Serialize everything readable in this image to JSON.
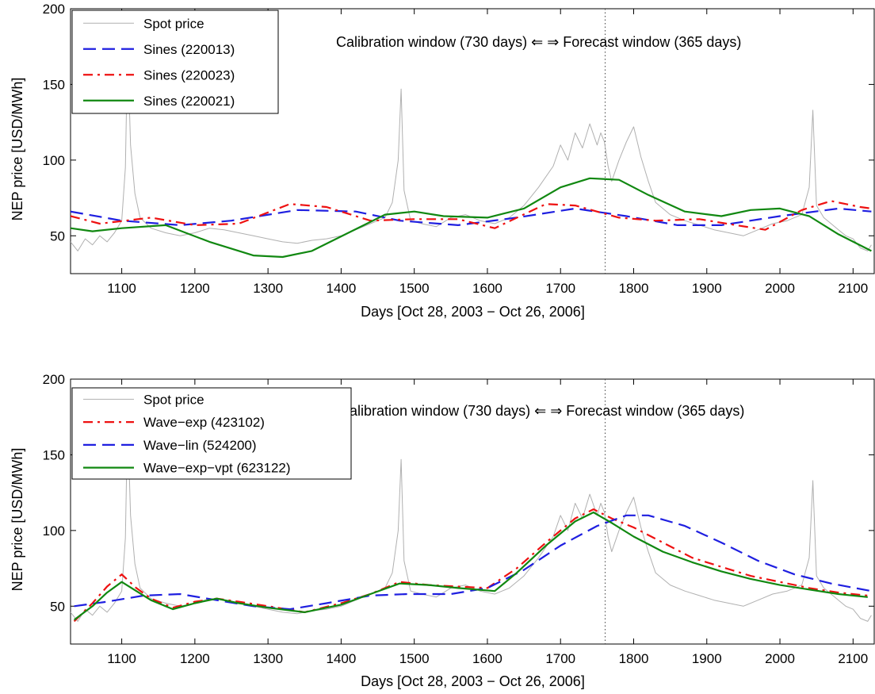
{
  "chart_data": [
    {
      "type": "line",
      "xlabel": "Days [Oct 28, 2003 − Oct 26, 2006]",
      "ylabel": "NEP price [USD/MWh]",
      "xlim": [
        1030,
        2130
      ],
      "ylim": [
        25,
        200
      ],
      "xticks": [
        1100,
        1200,
        1300,
        1400,
        1500,
        1600,
        1700,
        1800,
        1900,
        2000,
        2100
      ],
      "yticks": [
        50,
        100,
        150,
        200
      ],
      "grid": false,
      "legend_position": "top-left",
      "annotation": "Calibration window (730 days) ⇐ ⇒ Forecast window (365 days)",
      "divider_x": 1761,
      "series": [
        {
          "name": "Spot price",
          "color": "#b0b0b0",
          "style": "solid",
          "x": [
            1030,
            1040,
            1050,
            1060,
            1070,
            1080,
            1090,
            1100,
            1105,
            1108,
            1112,
            1118,
            1125,
            1140,
            1160,
            1180,
            1200,
            1220,
            1240,
            1260,
            1280,
            1300,
            1320,
            1340,
            1360,
            1380,
            1400,
            1420,
            1440,
            1460,
            1470,
            1478,
            1482,
            1486,
            1495,
            1510,
            1530,
            1550,
            1570,
            1590,
            1610,
            1630,
            1650,
            1670,
            1690,
            1700,
            1710,
            1720,
            1730,
            1740,
            1750,
            1755,
            1760,
            1765,
            1770,
            1780,
            1790,
            1800,
            1810,
            1820,
            1830,
            1850,
            1870,
            1890,
            1910,
            1930,
            1950,
            1970,
            1990,
            2010,
            2030,
            2040,
            2045,
            2050,
            2060,
            2070,
            2080,
            2090,
            2100,
            2110,
            2120,
            2125
          ],
          "values": [
            46,
            40,
            48,
            44,
            50,
            46,
            52,
            60,
            95,
            175,
            110,
            78,
            62,
            55,
            52,
            50,
            52,
            55,
            54,
            52,
            50,
            48,
            46,
            45,
            47,
            48,
            50,
            54,
            58,
            62,
            72,
            100,
            147,
            80,
            60,
            58,
            56,
            62,
            64,
            60,
            58,
            62,
            70,
            82,
            96,
            110,
            100,
            118,
            108,
            124,
            110,
            118,
            112,
            96,
            86,
            100,
            112,
            122,
            102,
            86,
            72,
            64,
            60,
            57,
            54,
            52,
            50,
            54,
            58,
            60,
            64,
            82,
            133,
            70,
            62,
            58,
            54,
            50,
            48,
            42,
            40,
            44
          ]
        },
        {
          "name": "Sines (220013)",
          "color": "#1f1fe0",
          "style": "dashed",
          "x": [
            1030,
            1100,
            1180,
            1250,
            1340,
            1420,
            1480,
            1560,
            1640,
            1720,
            1790,
            1860,
            1920,
            2000,
            2080,
            2125
          ],
          "values": [
            66,
            60,
            57,
            60,
            67,
            66,
            60,
            57,
            62,
            68,
            63,
            57,
            57,
            63,
            68,
            66
          ]
        },
        {
          "name": "Sines (220023)",
          "color": "#ee1111",
          "style": "dashdot",
          "x": [
            1030,
            1070,
            1140,
            1200,
            1260,
            1330,
            1380,
            1440,
            1500,
            1560,
            1610,
            1680,
            1720,
            1780,
            1830,
            1890,
            1940,
            1980,
            2030,
            2070,
            2110,
            2125
          ],
          "values": [
            63,
            58,
            62,
            57,
            58,
            71,
            69,
            60,
            61,
            61,
            55,
            71,
            70,
            62,
            60,
            61,
            57,
            54,
            67,
            73,
            69,
            68
          ]
        },
        {
          "name": "Sines (220021)",
          "color": "#118811",
          "style": "solid",
          "x": [
            1030,
            1060,
            1100,
            1160,
            1220,
            1280,
            1320,
            1360,
            1410,
            1460,
            1500,
            1540,
            1600,
            1650,
            1700,
            1740,
            1780,
            1820,
            1870,
            1920,
            1960,
            2000,
            2040,
            2080,
            2125
          ],
          "values": [
            55,
            53,
            55,
            57,
            46,
            37,
            36,
            40,
            52,
            64,
            66,
            63,
            62,
            68,
            82,
            88,
            87,
            77,
            66,
            63,
            67,
            68,
            63,
            51,
            40
          ]
        }
      ]
    },
    {
      "type": "line",
      "xlabel": "Days [Oct 28, 2003 − Oct 26, 2006]",
      "ylabel": "NEP price [USD/MWh]",
      "xlim": [
        1030,
        2130
      ],
      "ylim": [
        25,
        200
      ],
      "xticks": [
        1100,
        1200,
        1300,
        1400,
        1500,
        1600,
        1700,
        1800,
        1900,
        2000,
        2100
      ],
      "yticks": [
        50,
        100,
        150,
        200
      ],
      "grid": false,
      "legend_position": "top-left",
      "annotation": "Calibration window (730 days) ⇐ ⇒ Forecast window (365 days)",
      "divider_x": 1761,
      "series": [
        {
          "name": "Spot price",
          "color": "#b0b0b0",
          "style": "solid",
          "x": [
            1030,
            1040,
            1050,
            1060,
            1070,
            1080,
            1090,
            1100,
            1105,
            1108,
            1112,
            1118,
            1125,
            1140,
            1160,
            1180,
            1200,
            1220,
            1240,
            1260,
            1280,
            1300,
            1320,
            1340,
            1360,
            1380,
            1400,
            1420,
            1440,
            1460,
            1470,
            1478,
            1482,
            1486,
            1495,
            1510,
            1530,
            1550,
            1570,
            1590,
            1610,
            1630,
            1650,
            1670,
            1690,
            1700,
            1710,
            1720,
            1730,
            1740,
            1750,
            1755,
            1760,
            1765,
            1770,
            1780,
            1790,
            1800,
            1810,
            1820,
            1830,
            1850,
            1870,
            1890,
            1910,
            1930,
            1950,
            1970,
            1990,
            2010,
            2030,
            2040,
            2045,
            2050,
            2060,
            2070,
            2080,
            2090,
            2100,
            2110,
            2120,
            2125
          ],
          "values": [
            46,
            40,
            48,
            44,
            50,
            46,
            52,
            60,
            95,
            175,
            110,
            78,
            62,
            55,
            52,
            50,
            52,
            55,
            54,
            52,
            50,
            48,
            46,
            45,
            47,
            48,
            50,
            54,
            58,
            62,
            72,
            100,
            147,
            80,
            60,
            58,
            56,
            62,
            64,
            60,
            58,
            62,
            70,
            82,
            96,
            110,
            100,
            118,
            108,
            124,
            110,
            118,
            112,
            96,
            86,
            100,
            112,
            122,
            102,
            86,
            72,
            64,
            60,
            57,
            54,
            52,
            50,
            54,
            58,
            60,
            64,
            82,
            133,
            70,
            62,
            58,
            54,
            50,
            48,
            42,
            40,
            44
          ]
        },
        {
          "name": "Wave−exp (423102)",
          "color": "#ee1111",
          "style": "dashdot",
          "x": [
            1035,
            1060,
            1080,
            1100,
            1120,
            1140,
            1170,
            1200,
            1230,
            1260,
            1300,
            1350,
            1400,
            1440,
            1480,
            1520,
            1560,
            1600,
            1640,
            1680,
            1720,
            1745,
            1770,
            1800,
            1840,
            1880,
            1920,
            1960,
            2000,
            2040,
            2080,
            2120
          ],
          "values": [
            40,
            52,
            63,
            71,
            62,
            55,
            49,
            53,
            55,
            53,
            50,
            46,
            52,
            58,
            66,
            64,
            63,
            62,
            75,
            92,
            108,
            114,
            108,
            102,
            92,
            82,
            76,
            70,
            66,
            62,
            59,
            57
          ]
        },
        {
          "name": "Wave−lin (524200)",
          "color": "#1f1fe0",
          "style": "dashed",
          "x": [
            1035,
            1080,
            1130,
            1180,
            1230,
            1280,
            1330,
            1380,
            1440,
            1490,
            1550,
            1600,
            1650,
            1700,
            1750,
            1790,
            1820,
            1870,
            1920,
            1970,
            2020,
            2070,
            2125
          ],
          "values": [
            50,
            53,
            57,
            58,
            54,
            50,
            48,
            52,
            57,
            58,
            58,
            62,
            74,
            90,
            103,
            110,
            110,
            103,
            92,
            80,
            71,
            65,
            60
          ]
        },
        {
          "name": "Wave−exp−vpt (623122)",
          "color": "#118811",
          "style": "solid",
          "x": [
            1035,
            1060,
            1080,
            1100,
            1120,
            1140,
            1170,
            1200,
            1230,
            1260,
            1300,
            1350,
            1400,
            1440,
            1480,
            1520,
            1560,
            1610,
            1640,
            1680,
            1720,
            1745,
            1770,
            1800,
            1840,
            1880,
            1920,
            1960,
            2000,
            2040,
            2080,
            2120
          ],
          "values": [
            41,
            50,
            59,
            66,
            60,
            54,
            48,
            52,
            55,
            52,
            49,
            46,
            51,
            58,
            65,
            64,
            62,
            60,
            72,
            90,
            106,
            112,
            105,
            96,
            86,
            79,
            73,
            68,
            64,
            61,
            58,
            56
          ]
        }
      ]
    }
  ]
}
